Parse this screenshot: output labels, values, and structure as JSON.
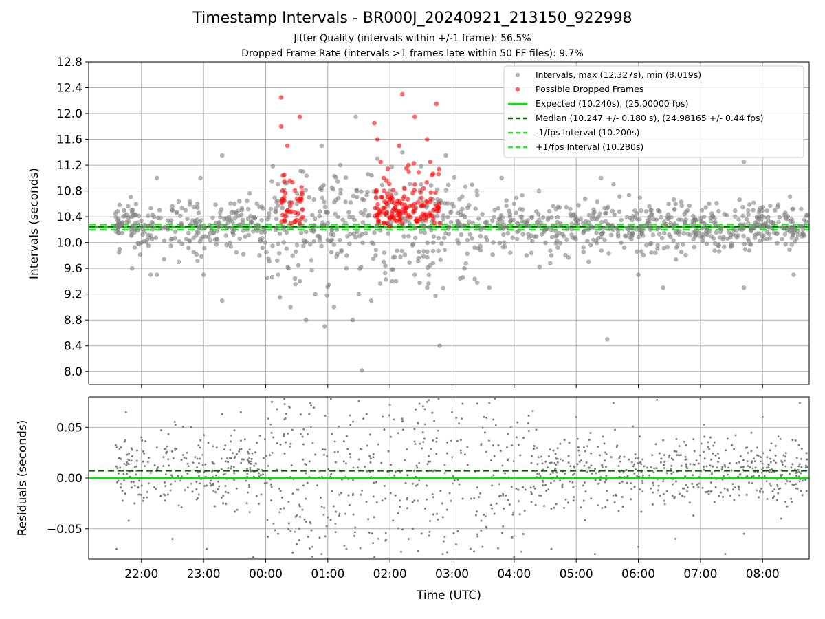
{
  "title": "Timestamp Intervals - BR000J_20240921_213150_922998",
  "subtitle_1": "Jitter Quality (intervals within +/-1 frame): 56.5%",
  "subtitle_2": "Dropped Frame Rate (intervals >1 frames late within 50 FF files): 9.7%",
  "colors": {
    "intervals": "#808080",
    "dropped": "#ff0000",
    "expected": "#00e600",
    "median": "#006400",
    "interval_lines": "#22ee22",
    "grid": "#b0b0b0"
  },
  "chart_data": [
    {
      "type": "scatter",
      "ylabel": "Intervals (seconds)",
      "ylim": [
        7.8,
        12.8
      ],
      "yticks": [
        "8.0",
        "8.4",
        "8.8",
        "9.2",
        "9.6",
        "10.0",
        "10.4",
        "10.8",
        "11.2",
        "11.6",
        "12.0",
        "12.4",
        "12.8"
      ],
      "xlim_hours_utc": [
        21.15,
        32.75
      ],
      "xticks": [
        "22:00",
        "23:00",
        "00:00",
        "01:00",
        "02:00",
        "03:00",
        "04:00",
        "05:00",
        "06:00",
        "07:00",
        "08:00"
      ],
      "grid": true,
      "legend_position": "top-right",
      "legend": [
        "Intervals, max (12.327s), min (8.019s)",
        "Possible Dropped Frames",
        "Expected (10.240s), (25.00000 fps)",
        "Median (10.247 +/- 0.180 s), (24.98165 +/- 0.44 fps)",
        "-1/fps Interval (10.200s)",
        "+1/fps Interval (10.280s)"
      ],
      "reference_lines": {
        "expected": 10.24,
        "median": 10.247,
        "minus_1_fps": 10.2,
        "plus_1_fps": 10.28
      },
      "series_summary": {
        "max": 12.327,
        "min": 8.019,
        "time_range": [
          "21:32",
          "08:45"
        ]
      },
      "series": [
        {
          "name": "Intervals, max (12.327s), min (8.019s)",
          "points": [
            [
              21.58,
              10.45
            ],
            [
              21.62,
              10.2
            ],
            [
              21.65,
              9.9
            ],
            [
              21.72,
              10.5
            ],
            [
              21.85,
              9.6
            ],
            [
              21.9,
              10.3
            ],
            [
              22.0,
              10.0
            ],
            [
              22.1,
              10.25
            ],
            [
              22.15,
              9.5
            ],
            [
              22.25,
              9.5
            ],
            [
              22.25,
              11.0
            ],
            [
              22.5,
              10.5
            ],
            [
              22.6,
              9.7
            ],
            [
              22.9,
              10.6
            ],
            [
              22.95,
              11.0
            ],
            [
              23.0,
              9.5
            ],
            [
              23.2,
              10.3
            ],
            [
              23.3,
              11.35
            ],
            [
              23.3,
              9.1
            ],
            [
              23.5,
              10.6
            ],
            [
              23.7,
              10.2
            ],
            [
              23.9,
              9.8
            ],
            [
              24.05,
              10.4
            ],
            [
              24.1,
              10.95
            ],
            [
              24.2,
              9.5
            ],
            [
              24.3,
              10.2
            ],
            [
              24.4,
              9.0
            ],
            [
              24.5,
              10.6
            ],
            [
              24.55,
              9.4
            ],
            [
              24.6,
              11.1
            ],
            [
              24.65,
              8.8
            ],
            [
              24.7,
              10.7
            ],
            [
              24.8,
              9.2
            ],
            [
              24.9,
              11.5
            ],
            [
              24.95,
              8.7
            ],
            [
              25.0,
              10.3
            ],
            [
              25.1,
              9.0
            ],
            [
              25.2,
              11.2
            ],
            [
              25.3,
              9.6
            ],
            [
              25.4,
              8.8
            ],
            [
              25.45,
              11.95
            ],
            [
              25.5,
              9.2
            ],
            [
              25.55,
              8.02
            ],
            [
              25.6,
              10.5
            ],
            [
              25.7,
              9.1
            ],
            [
              25.8,
              11.3
            ],
            [
              25.9,
              9.7
            ],
            [
              26.0,
              10.8
            ],
            [
              26.1,
              9.4
            ],
            [
              26.2,
              11.4
            ],
            [
              26.3,
              10.1
            ],
            [
              26.4,
              9.5
            ],
            [
              26.5,
              10.9
            ],
            [
              26.6,
              9.3
            ],
            [
              26.7,
              10.0
            ],
            [
              26.8,
              8.4
            ],
            [
              26.9,
              11.35
            ],
            [
              27.0,
              10.6
            ],
            [
              27.2,
              9.6
            ],
            [
              27.4,
              10.8
            ],
            [
              27.6,
              9.3
            ],
            [
              27.8,
              11.0
            ],
            [
              28.0,
              10.6
            ],
            [
              28.2,
              9.8
            ],
            [
              28.4,
              10.8
            ],
            [
              28.6,
              9.8
            ],
            [
              28.8,
              10.1
            ],
            [
              29.0,
              10.3
            ],
            [
              29.2,
              9.7
            ],
            [
              29.4,
              11.0
            ],
            [
              29.5,
              8.5
            ],
            [
              29.6,
              10.9
            ],
            [
              29.8,
              10.1
            ],
            [
              30.0,
              9.5
            ],
            [
              30.2,
              10.5
            ],
            [
              30.4,
              9.3
            ],
            [
              30.6,
              10.6
            ],
            [
              30.9,
              10.3
            ],
            [
              31.2,
              10.4
            ],
            [
              31.5,
              9.95
            ],
            [
              31.7,
              11.25
            ],
            [
              31.7,
              9.3
            ],
            [
              32.0,
              10.5
            ],
            [
              32.2,
              10.5
            ],
            [
              32.5,
              9.5
            ],
            [
              32.65,
              10.2
            ]
          ]
        },
        {
          "name": "Possible Dropped Frames",
          "points": [
            [
              24.25,
              12.25
            ],
            [
              24.25,
              11.8
            ],
            [
              24.35,
              11.5
            ],
            [
              24.3,
              11.05
            ],
            [
              24.3,
              10.95
            ],
            [
              24.3,
              10.65
            ],
            [
              24.35,
              10.5
            ],
            [
              24.3,
              10.35
            ],
            [
              24.4,
              10.3
            ],
            [
              24.55,
              11.95
            ],
            [
              24.55,
              10.3
            ],
            [
              25.75,
              11.85
            ],
            [
              25.8,
              11.6
            ],
            [
              25.85,
              11.25
            ],
            [
              25.9,
              11.0
            ],
            [
              25.95,
              10.6
            ],
            [
              25.8,
              10.4
            ],
            [
              25.9,
              10.3
            ],
            [
              26.0,
              10.25
            ],
            [
              26.1,
              10.5
            ],
            [
              26.15,
              11.5
            ],
            [
              26.2,
              12.3
            ],
            [
              26.2,
              10.3
            ],
            [
              26.3,
              11.2
            ],
            [
              26.4,
              11.95
            ],
            [
              26.4,
              10.9
            ],
            [
              26.5,
              10.4
            ],
            [
              26.6,
              11.6
            ],
            [
              26.65,
              11.25
            ],
            [
              26.7,
              10.5
            ],
            [
              26.75,
              12.15
            ],
            [
              26.8,
              10.3
            ]
          ]
        }
      ]
    },
    {
      "type": "scatter",
      "xlabel": "Time (UTC)",
      "ylabel": "Residuals (seconds)",
      "ylim": [
        -0.08,
        0.08
      ],
      "yticks": [
        "−0.05",
        "0.00",
        "0.05"
      ],
      "xlim_hours_utc": [
        21.15,
        32.75
      ],
      "xticks": [
        "22:00",
        "23:00",
        "00:00",
        "01:00",
        "02:00",
        "03:00",
        "04:00",
        "05:00",
        "06:00",
        "07:00",
        "08:00"
      ],
      "grid": true,
      "reference_lines": {
        "zero": 0.0,
        "median_offset": 0.007
      },
      "series": [
        {
          "name": "",
          "points": [
            [
              21.6,
              0.03
            ],
            [
              21.6,
              -0.07
            ],
            [
              21.75,
              0.065
            ],
            [
              22.0,
              0.04
            ],
            [
              22.25,
              0.03
            ],
            [
              22.5,
              -0.06
            ],
            [
              22.8,
              0.05
            ],
            [
              23.05,
              -0.07
            ],
            [
              23.3,
              0.063
            ],
            [
              23.6,
              0.065
            ],
            [
              23.8,
              -0.078
            ],
            [
              24.1,
              0.075
            ],
            [
              24.2,
              -0.055
            ],
            [
              24.3,
              0.078
            ],
            [
              24.5,
              -0.065
            ],
            [
              24.7,
              0.063
            ],
            [
              24.9,
              -0.075
            ],
            [
              25.05,
              0.078
            ],
            [
              25.3,
              -0.07
            ],
            [
              25.5,
              0.076
            ],
            [
              25.75,
              -0.078
            ],
            [
              26.0,
              0.072
            ],
            [
              26.3,
              -0.06
            ],
            [
              26.6,
              0.075
            ],
            [
              26.85,
              -0.075
            ],
            [
              27.0,
              0.065
            ],
            [
              27.3,
              -0.07
            ],
            [
              27.6,
              0.074
            ],
            [
              28.0,
              -0.078
            ],
            [
              28.3,
              0.066
            ],
            [
              28.6,
              -0.07
            ],
            [
              29.0,
              0.06
            ],
            [
              29.3,
              -0.075
            ],
            [
              29.6,
              0.074
            ],
            [
              30.0,
              -0.068
            ],
            [
              30.3,
              0.077
            ],
            [
              30.6,
              -0.06
            ],
            [
              31.0,
              0.078
            ],
            [
              31.4,
              -0.075
            ],
            [
              31.7,
              -0.055
            ],
            [
              32.0,
              0.06
            ],
            [
              32.3,
              -0.04
            ],
            [
              32.6,
              0.074
            ]
          ]
        }
      ]
    }
  ]
}
